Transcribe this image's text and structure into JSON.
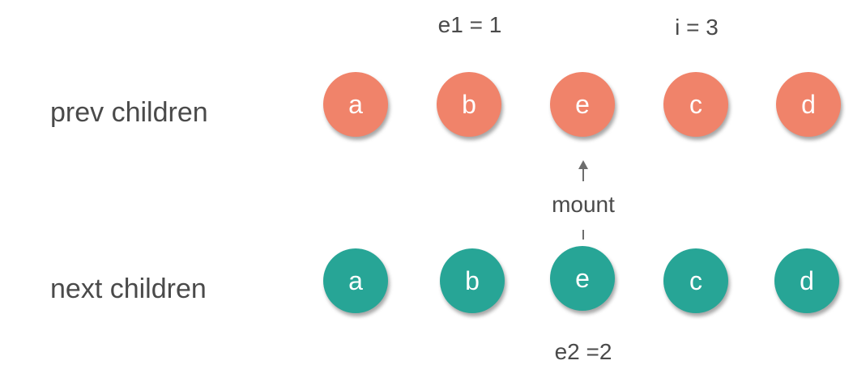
{
  "rows": {
    "prev": {
      "label": "prev children",
      "nodes": [
        "a",
        "b",
        "e",
        "c",
        "d"
      ]
    },
    "next": {
      "label": "next children",
      "nodes": [
        "a",
        "b",
        "e",
        "c",
        "d"
      ]
    }
  },
  "annotations": {
    "e1": "e1 = 1",
    "i": "i = 3",
    "mount": "mount",
    "e2": "e2 =2"
  },
  "colors": {
    "prev_node": "#f0836a",
    "next_node": "#27a596",
    "text": "#4a4a4a",
    "arrow": "#6d6d6d"
  }
}
